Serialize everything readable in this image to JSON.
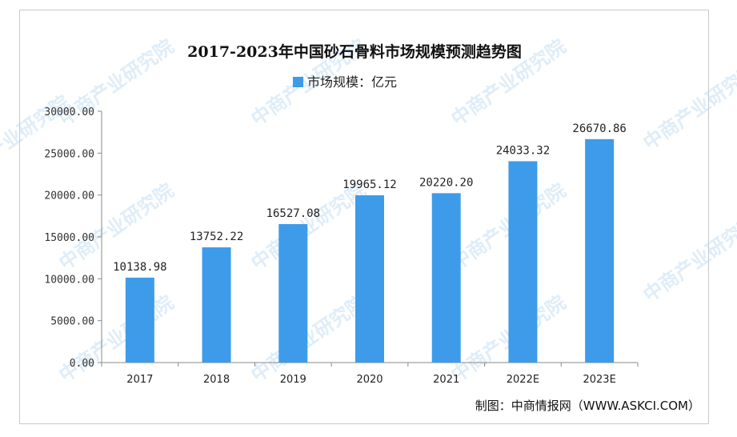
{
  "chart_data": {
    "type": "bar",
    "title": "2017-2023年中国砂石骨料市场规模预测趋势图",
    "categories": [
      "2017",
      "2018",
      "2019",
      "2020",
      "2021",
      "2022E",
      "2023E"
    ],
    "series": [
      {
        "name": "市场规模：亿元",
        "values": [
          10138.98,
          13752.22,
          16527.08,
          19965.12,
          20220.2,
          24033.32,
          26670.86
        ],
        "color": "#3d9bea"
      }
    ],
    "data_labels": [
      "10138.98",
      "13752.22",
      "16527.08",
      "19965.12",
      "20220.20",
      "24033.32",
      "26670.86"
    ],
    "ylim": [
      0,
      30000
    ],
    "yticks": [
      0,
      5000,
      10000,
      15000,
      20000,
      25000,
      30000
    ],
    "ytick_labels": [
      "0.00",
      "5000.00",
      "10000.00",
      "15000.00",
      "20000.00",
      "25000.00",
      "30000.00"
    ],
    "legend_position": "top-center",
    "grid": false,
    "source": "制图：中商情报网（WWW.ASKCI.COM）",
    "watermark": "中商产业研究院"
  }
}
